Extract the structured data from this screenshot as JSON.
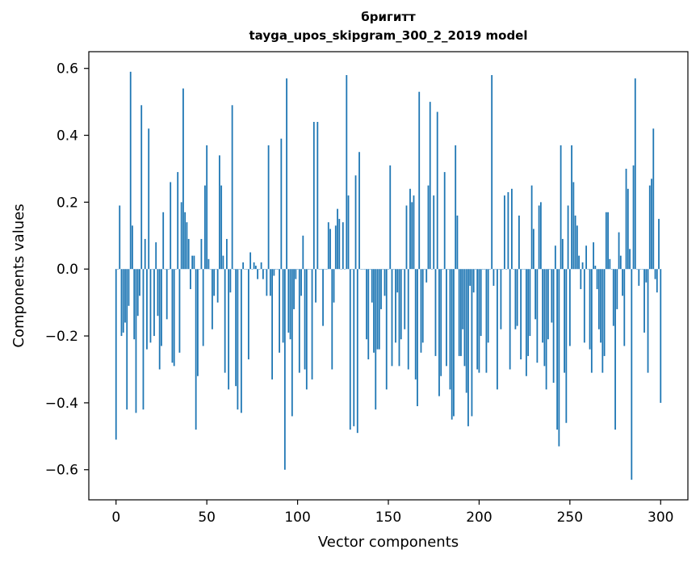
{
  "chart_data": {
    "type": "bar",
    "title": "бригитт",
    "subtitle": "tayga_upos_skipgram_300_2_2019 model",
    "xlabel": "Vector components",
    "ylabel": "Components values",
    "xlim": [
      -15,
      315
    ],
    "ylim": [
      -0.69,
      0.65
    ],
    "xticks": [
      0,
      50,
      100,
      150,
      200,
      250,
      300
    ],
    "xtick_labels": [
      "0",
      "50",
      "100",
      "150",
      "200",
      "250",
      "300"
    ],
    "yticks": [
      -0.6,
      -0.4,
      -0.2,
      0.0,
      0.2,
      0.4,
      0.6
    ],
    "ytick_labels": [
      "−0.6",
      "−0.4",
      "−0.2",
      "0.0",
      "0.2",
      "0.4",
      "0.6"
    ],
    "grid": false,
    "bar_color": "#1f77b4",
    "x_start": 0,
    "values": [
      -0.51,
      0.0,
      0.19,
      -0.2,
      -0.19,
      -0.16,
      -0.42,
      -0.11,
      0.59,
      0.13,
      -0.21,
      -0.43,
      -0.14,
      -0.08,
      0.49,
      -0.42,
      0.09,
      -0.24,
      0.42,
      -0.22,
      0.0,
      -0.2,
      0.08,
      -0.14,
      -0.3,
      -0.23,
      0.17,
      0.0,
      -0.15,
      0.0,
      0.26,
      -0.28,
      -0.29,
      0.0,
      0.29,
      -0.25,
      0.2,
      0.54,
      0.17,
      0.14,
      0.09,
      -0.06,
      0.04,
      0.04,
      -0.48,
      -0.32,
      0.0,
      0.09,
      -0.23,
      0.25,
      0.37,
      0.03,
      0.0,
      -0.18,
      -0.08,
      0.0,
      -0.1,
      0.34,
      0.25,
      0.04,
      -0.31,
      0.09,
      -0.36,
      -0.07,
      0.49,
      0.0,
      -0.35,
      -0.42,
      0.0,
      -0.43,
      0.02,
      0.0,
      0.0,
      -0.27,
      0.05,
      0.0,
      0.02,
      0.01,
      -0.03,
      0.0,
      0.02,
      -0.03,
      0.0,
      -0.08,
      0.37,
      -0.08,
      -0.33,
      -0.02,
      0.0,
      0.0,
      -0.25,
      0.39,
      -0.22,
      -0.6,
      0.57,
      -0.19,
      -0.21,
      -0.44,
      -0.12,
      -0.03,
      0.0,
      -0.31,
      -0.08,
      0.1,
      -0.3,
      -0.36,
      0.0,
      0.0,
      -0.33,
      0.44,
      -0.1,
      0.44,
      0.0,
      0.0,
      -0.17,
      0.0,
      0.0,
      0.14,
      0.12,
      -0.3,
      -0.1,
      0.13,
      0.18,
      0.15,
      0.0,
      0.14,
      0.0,
      0.58,
      0.22,
      -0.48,
      0.0,
      -0.47,
      0.28,
      -0.49,
      0.35,
      0.0,
      0.0,
      0.0,
      -0.21,
      -0.27,
      0.0,
      -0.1,
      -0.25,
      -0.42,
      -0.24,
      -0.24,
      -0.12,
      0.0,
      -0.08,
      -0.36,
      0.0,
      0.31,
      -0.29,
      0.0,
      -0.22,
      -0.07,
      -0.29,
      -0.21,
      0.0,
      -0.18,
      0.19,
      -0.3,
      0.24,
      0.2,
      0.22,
      -0.33,
      -0.41,
      0.53,
      -0.25,
      -0.22,
      0.0,
      -0.04,
      0.25,
      0.5,
      0.0,
      0.22,
      -0.26,
      0.47,
      -0.38,
      -0.32,
      0.0,
      0.29,
      -0.29,
      0.0,
      -0.36,
      -0.45,
      -0.44,
      0.37,
      0.16,
      -0.26,
      -0.26,
      -0.18,
      -0.29,
      -0.37,
      -0.47,
      -0.05,
      -0.44,
      -0.07,
      0.0,
      -0.3,
      -0.31,
      -0.2,
      0.0,
      0.0,
      -0.31,
      -0.22,
      0.0,
      0.58,
      -0.05,
      0.0,
      -0.36,
      0.0,
      -0.18,
      0.0,
      0.22,
      0.0,
      0.23,
      -0.3,
      0.24,
      0.0,
      -0.18,
      -0.17,
      0.16,
      -0.27,
      0.0,
      0.0,
      -0.32,
      -0.26,
      -0.2,
      0.25,
      0.12,
      -0.15,
      -0.28,
      0.19,
      0.2,
      -0.22,
      -0.29,
      -0.36,
      -0.21,
      0.0,
      -0.16,
      -0.34,
      0.07,
      -0.48,
      -0.53,
      0.37,
      0.09,
      -0.31,
      -0.46,
      0.19,
      -0.23,
      0.37,
      0.26,
      0.16,
      0.13,
      0.04,
      -0.06,
      0.02,
      -0.22,
      0.07,
      0.0,
      -0.24,
      -0.31,
      0.08,
      0.01,
      -0.06,
      -0.18,
      -0.22,
      -0.31,
      -0.26,
      0.17,
      0.17,
      0.03,
      0.0,
      -0.17,
      -0.48,
      -0.12,
      0.11,
      0.04,
      -0.08,
      -0.23,
      0.3,
      0.24,
      0.06,
      -0.63,
      0.31,
      0.57,
      0.0,
      -0.05,
      0.0,
      0.0,
      -0.19,
      -0.04,
      -0.31,
      0.25,
      0.27,
      0.42,
      -0.03,
      -0.07,
      0.15,
      -0.4
    ]
  }
}
